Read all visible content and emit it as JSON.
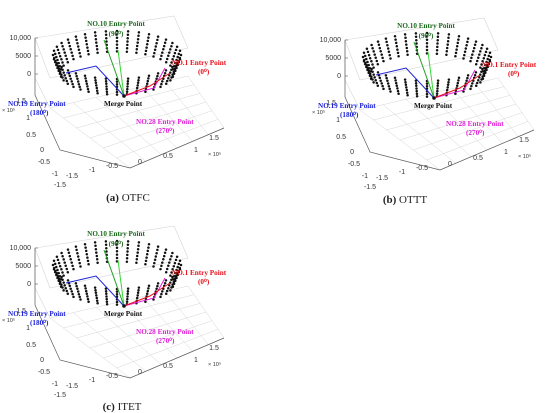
{
  "chart_data": [
    {
      "type": "scatter",
      "panel_label": "(a)",
      "caption": "OTFC",
      "z_ticks": [
        "10,000",
        "5000",
        "0"
      ],
      "x_ticks": [
        "-1.5",
        "-1",
        "-0.5",
        "0",
        "0.5",
        "1",
        "1.5"
      ],
      "y_ticks": [
        "1.5",
        "1",
        "0.5",
        "0",
        "-0.5",
        "-1",
        "-1.5"
      ],
      "x_exponent": "× 10⁵",
      "y_exponent": "× 10⁵",
      "annotations": {
        "entry_10": "NO.10 Entry Point",
        "entry_10_angle": "(90⁰)",
        "entry_1": "NO.1 Entry Point",
        "entry_1_angle": "(0⁰)",
        "entry_19": "NO.19 Entry Point",
        "entry_19_angle": "(180⁰)",
        "entry_28": "NO.28 Entry Point",
        "entry_28_angle": "(270⁰)",
        "merge": "Merge Point"
      },
      "colors": {
        "entry_10": "#1f6b1f",
        "entry_1": "#e8101a",
        "entry_19": "#1c22d6",
        "entry_28": "#e020d8",
        "merge": "#111111"
      }
    },
    {
      "type": "scatter",
      "panel_label": "(b)",
      "caption": "OTTT",
      "z_ticks": [
        "10,000",
        "5000",
        "0"
      ],
      "x_ticks": [
        "-1.5",
        "-1",
        "-0.5",
        "0",
        "0.5",
        "1",
        "1.5"
      ],
      "y_ticks": [
        "1.5",
        "1",
        "0.5",
        "0",
        "-0.5",
        "-1",
        "-1.5"
      ],
      "x_exponent": "× 10⁵",
      "y_exponent": "× 10⁵",
      "annotations": {
        "entry_10": "NO.10 Entry Point",
        "entry_10_angle": "(90⁰)",
        "entry_1": "NO.1 Entry Point",
        "entry_1_angle": "(0⁰)",
        "entry_19": "NO.19 Entry Point",
        "entry_19_angle": "(180⁰)",
        "entry_28": "NO.28 Entry Point",
        "entry_28_angle": "(270⁰)",
        "merge": "Merge Point"
      },
      "colors": {
        "entry_10": "#1f6b1f",
        "entry_1": "#e8101a",
        "entry_19": "#1c22d6",
        "entry_28": "#e020d8",
        "merge": "#111111"
      }
    },
    {
      "type": "scatter",
      "panel_label": "(c)",
      "caption": "ITET",
      "z_ticks": [
        "10,000",
        "5000",
        "0"
      ],
      "x_ticks": [
        "-1.5",
        "-1",
        "-0.5",
        "0",
        "0.5",
        "1",
        "1.5"
      ],
      "y_ticks": [
        "1.5",
        "1",
        "0.5",
        "0",
        "-0.5",
        "-1",
        "-1.5"
      ],
      "x_exponent": "× 10⁵",
      "y_exponent": "× 10⁵",
      "annotations": {
        "entry_10": "NO.10 Entry Point",
        "entry_10_angle": "(90⁰)",
        "entry_1": "NO.1 Entry Point",
        "entry_1_angle": "(0⁰)",
        "entry_19": "NO.19 Entry Point",
        "entry_19_angle": "(180⁰)",
        "entry_28": "NO.28 Entry Point",
        "entry_28_angle": "(270⁰)",
        "merge": "Merge Point"
      },
      "colors": {
        "entry_10": "#1f6b1f",
        "entry_1": "#e8101a",
        "entry_19": "#1c22d6",
        "entry_28": "#e020d8",
        "merge": "#111111"
      }
    }
  ]
}
